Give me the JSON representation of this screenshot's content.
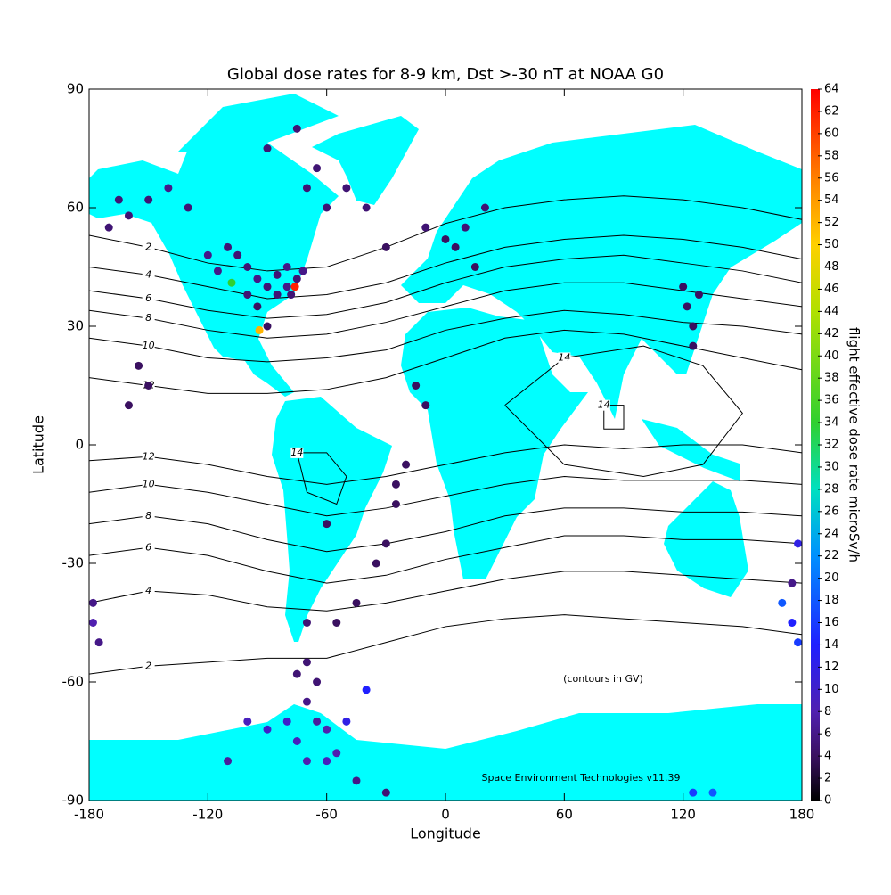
{
  "chart_data": {
    "type": "map",
    "title": "Global dose rates for 8-9 km, Dst >-30 nT at NOAA G0",
    "x_label": "Longitude",
    "y_label": "Latitude",
    "xlim": [
      -180,
      180
    ],
    "ylim": [
      -90,
      90
    ],
    "xticks": [
      -180,
      -120,
      -60,
      0,
      60,
      120,
      180
    ],
    "yticks": [
      -90,
      -60,
      -30,
      0,
      30,
      60,
      90
    ],
    "annotations": [
      "(contours in GV)",
      "Space Environment Technologies v11.39"
    ],
    "colorbar": {
      "label": "flight effective dose rate microSv/h",
      "lim": [
        0,
        64
      ],
      "ticks": [
        0,
        2,
        4,
        6,
        8,
        10,
        12,
        14,
        16,
        18,
        20,
        22,
        24,
        26,
        28,
        30,
        32,
        34,
        36,
        38,
        40,
        42,
        44,
        46,
        48,
        50,
        52,
        54,
        56,
        58,
        60,
        62,
        64
      ],
      "colormap": [
        {
          "value": 0,
          "color": "#000000"
        },
        {
          "value": 4,
          "color": "#3a1060"
        },
        {
          "value": 8,
          "color": "#5020b0"
        },
        {
          "value": 14,
          "color": "#2020ff"
        },
        {
          "value": 22,
          "color": "#0090ff"
        },
        {
          "value": 28,
          "color": "#00e0c0"
        },
        {
          "value": 34,
          "color": "#30d030"
        },
        {
          "value": 44,
          "color": "#b0e000"
        },
        {
          "value": 50,
          "color": "#ffd000"
        },
        {
          "value": 56,
          "color": "#ff8000"
        },
        {
          "value": 64,
          "color": "#ff0000"
        }
      ]
    },
    "contours": [
      {
        "level": 2,
        "lon": [
          -180,
          -150,
          -120,
          -90,
          -60,
          -30,
          0,
          30,
          60,
          90,
          120,
          150,
          180
        ],
        "lat": [
          53,
          50,
          46,
          44,
          45,
          50,
          56,
          60,
          62,
          63,
          62,
          60,
          57
        ]
      },
      {
        "level": 4,
        "lon": [
          -180,
          -150,
          -120,
          -90,
          -60,
          -30,
          0,
          30,
          60,
          90,
          120,
          150,
          180
        ],
        "lat": [
          45,
          43,
          40,
          37,
          38,
          41,
          46,
          50,
          52,
          53,
          52,
          50,
          47
        ]
      },
      {
        "level": 6,
        "lon": [
          -180,
          -150,
          -120,
          -90,
          -60,
          -30,
          0,
          30,
          60,
          90,
          120,
          150,
          180
        ],
        "lat": [
          39,
          37,
          34,
          32,
          33,
          36,
          41,
          45,
          47,
          48,
          46,
          44,
          41
        ]
      },
      {
        "level": 8,
        "lon": [
          -180,
          -150,
          -120,
          -90,
          -60,
          -30,
          0,
          30,
          60,
          90,
          120,
          150,
          180
        ],
        "lat": [
          34,
          32,
          29,
          27,
          28,
          31,
          35,
          39,
          41,
          41,
          39,
          37,
          35
        ]
      },
      {
        "level": 10,
        "lon": [
          -180,
          -150,
          -120,
          -90,
          -60,
          -30,
          0,
          30,
          60,
          90,
          120,
          150,
          180
        ],
        "lat": [
          27,
          25,
          22,
          21,
          22,
          24,
          29,
          32,
          34,
          33,
          31,
          30,
          28
        ]
      },
      {
        "level": 12,
        "lon": [
          -180,
          -150,
          -120,
          -90,
          -60,
          -30,
          0,
          30,
          60,
          90,
          120,
          150,
          180
        ],
        "lat": [
          17,
          15,
          13,
          13,
          14,
          17,
          22,
          27,
          29,
          28,
          25,
          22,
          19
        ]
      },
      {
        "level": 14,
        "lon": [
          30,
          60,
          100,
          130,
          150,
          130,
          100,
          60,
          30
        ],
        "lat": [
          10,
          22,
          25,
          20,
          8,
          -5,
          -8,
          -5,
          10
        ]
      },
      {
        "level": 14,
        "lon": [
          80,
          90,
          90,
          80,
          80
        ],
        "lat": [
          10,
          10,
          4,
          4,
          10
        ]
      },
      {
        "level": 14,
        "lon": [
          -75,
          -60,
          -50,
          -55,
          -70,
          -75
        ],
        "lat": [
          -2,
          -2,
          -8,
          -15,
          -12,
          -2
        ]
      },
      {
        "level": 12,
        "lon": [
          -180,
          -150,
          -120,
          -90,
          -60,
          -30,
          0,
          30,
          60,
          90,
          120,
          150,
          180
        ],
        "lat": [
          -4,
          -3,
          -5,
          -8,
          -10,
          -8,
          -5,
          -2,
          0,
          -1,
          0,
          0,
          -2
        ]
      },
      {
        "level": 10,
        "lon": [
          -180,
          -150,
          -120,
          -90,
          -60,
          -30,
          0,
          30,
          60,
          90,
          120,
          150,
          180
        ],
        "lat": [
          -12,
          -10,
          -12,
          -15,
          -18,
          -16,
          -13,
          -10,
          -8,
          -9,
          -9,
          -9,
          -10
        ]
      },
      {
        "level": 8,
        "lon": [
          -180,
          -150,
          -120,
          -90,
          -60,
          -30,
          0,
          30,
          60,
          90,
          120,
          150,
          180
        ],
        "lat": [
          -20,
          -18,
          -20,
          -24,
          -27,
          -25,
          -22,
          -18,
          -16,
          -16,
          -17,
          -17,
          -18
        ]
      },
      {
        "level": 6,
        "lon": [
          -180,
          -150,
          -120,
          -90,
          -60,
          -30,
          0,
          30,
          60,
          90,
          120,
          150,
          180
        ],
        "lat": [
          -28,
          -26,
          -28,
          -32,
          -35,
          -33,
          -29,
          -26,
          -23,
          -23,
          -24,
          -24,
          -25
        ]
      },
      {
        "level": 4,
        "lon": [
          -180,
          -150,
          -120,
          -90,
          -60,
          -30,
          0,
          30,
          60,
          90,
          120,
          150,
          180
        ],
        "lat": [
          -40,
          -37,
          -38,
          -41,
          -42,
          -40,
          -37,
          -34,
          -32,
          -32,
          -33,
          -34,
          -35
        ]
      },
      {
        "level": 2,
        "lon": [
          -180,
          -150,
          -120,
          -90,
          -60,
          -30,
          0,
          30,
          60,
          90,
          120,
          150,
          180
        ],
        "lat": [
          -58,
          -56,
          -55,
          -54,
          -54,
          -50,
          -46,
          -44,
          -43,
          -44,
          -45,
          -46,
          -48
        ]
      }
    ],
    "points": {
      "lon": [
        -100,
        -95,
        -90,
        -85,
        -80,
        -75,
        -105,
        -110,
        -120,
        -115,
        -95,
        -90,
        -100,
        -85,
        -78,
        -72,
        -80,
        -108,
        -76,
        -94,
        -170,
        -160,
        -150,
        -140,
        -130,
        -165,
        -75,
        -90,
        -70,
        -60,
        -65,
        -50,
        -150,
        -155,
        -160,
        0,
        5,
        10,
        -10,
        -30,
        -40,
        20,
        15,
        120,
        122,
        125,
        125,
        128,
        -25,
        -25,
        -30,
        -35,
        -20,
        -10,
        -15,
        -60,
        -70,
        -70,
        -55,
        -45,
        -70,
        -65,
        -60,
        -75,
        -55,
        -80,
        -50,
        -40,
        -90,
        -100,
        -110,
        -45,
        -30,
        -70,
        -60,
        -65,
        -75,
        175,
        178,
        170,
        175,
        178,
        125,
        135,
        -178,
        -178,
        -175
      ],
      "lat": [
        45,
        42,
        40,
        38,
        40,
        42,
        48,
        50,
        48,
        44,
        35,
        30,
        38,
        43,
        38,
        44,
        45,
        41,
        40,
        29,
        55,
        58,
        62,
        65,
        60,
        62,
        80,
        75,
        65,
        60,
        70,
        65,
        15,
        20,
        10,
        52,
        50,
        55,
        55,
        50,
        60,
        60,
        45,
        40,
        35,
        30,
        25,
        38,
        -10,
        -15,
        -25,
        -30,
        -5,
        10,
        15,
        -20,
        -45,
        -55,
        -45,
        -40,
        -65,
        -70,
        -72,
        -75,
        -78,
        -70,
        -70,
        -62,
        -72,
        -70,
        -80,
        -85,
        -88,
        -80,
        -80,
        -60,
        -58,
        -45,
        -50,
        -40,
        -35,
        -25,
        -88,
        -88,
        -40,
        -45,
        -50
      ],
      "values": [
        5,
        6,
        5,
        5,
        6,
        5,
        5,
        5,
        6,
        6,
        4,
        4,
        5,
        5,
        5,
        6,
        6,
        34,
        62,
        52,
        5,
        5,
        5,
        6,
        5,
        5,
        5,
        5,
        5,
        5,
        5,
        5,
        4,
        4,
        4,
        4,
        4,
        5,
        5,
        4,
        5,
        5,
        4,
        4,
        4,
        4,
        4,
        4,
        4,
        4,
        4,
        4,
        4,
        4,
        4,
        4,
        5,
        5,
        4,
        4,
        6,
        7,
        8,
        9,
        8,
        10,
        12,
        14,
        10,
        9,
        7,
        6,
        5,
        8,
        9,
        5,
        5,
        14,
        16,
        18,
        6,
        12,
        16,
        18,
        6,
        8,
        6
      ]
    }
  }
}
